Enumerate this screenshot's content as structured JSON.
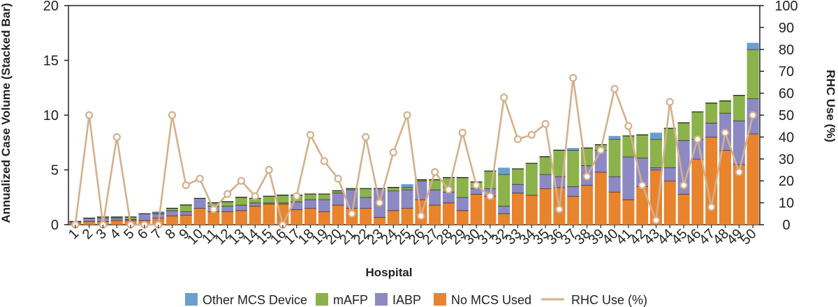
{
  "chart_data": {
    "type": "bar",
    "stacked": true,
    "categories": [
      "1",
      "2",
      "3",
      "4",
      "5",
      "6",
      "7",
      "8",
      "9",
      "10",
      "11",
      "12",
      "13",
      "14",
      "15",
      "16",
      "17",
      "18",
      "19",
      "20",
      "21",
      "22",
      "23",
      "24",
      "25",
      "26",
      "27",
      "28",
      "29",
      "30",
      "31",
      "32",
      "33",
      "34",
      "35",
      "36",
      "37",
      "38",
      "39",
      "40",
      "41",
      "42",
      "43",
      "44",
      "45",
      "46",
      "47",
      "48",
      "49",
      "50"
    ],
    "xlabel": "Hospital",
    "ylabel": "Annualized Case Volume (Stacked Bar)",
    "ylim": [
      0,
      20
    ],
    "yticks": [
      "0",
      "5",
      "10",
      "15",
      "20"
    ],
    "y2label": "RHC Use (%)",
    "y2lim": [
      0,
      100
    ],
    "y2ticks": [
      "0",
      "10",
      "20",
      "30",
      "40",
      "50",
      "60",
      "70",
      "80",
      "90",
      "100"
    ],
    "series": [
      {
        "name": "No MCS Used",
        "color": "#E8832E",
        "values": [
          0.2,
          0.3,
          0.3,
          0.4,
          0.4,
          0.4,
          0.6,
          0.8,
          0.9,
          1.5,
          1.2,
          1.2,
          1.3,
          1.7,
          1.9,
          1.9,
          1.4,
          1.5,
          1.2,
          1.8,
          1.5,
          1.5,
          0.7,
          1.3,
          1.5,
          2.3,
          1.8,
          2.0,
          1.3,
          2.8,
          2.6,
          1.0,
          2.9,
          2.7,
          3.3,
          3.4,
          2.6,
          3.6,
          4.8,
          3.0,
          2.3,
          3.5,
          5.0,
          4.0,
          2.8,
          6.0,
          8.0,
          6.8,
          5.5,
          8.3
        ]
      },
      {
        "name": "IABP",
        "color": "#8D89C2",
        "values": [
          0.1,
          0.3,
          0.3,
          0.2,
          0.1,
          0.6,
          0.4,
          0.5,
          0.3,
          0.9,
          0.5,
          0.5,
          0.5,
          0.3,
          0.1,
          0.1,
          0.7,
          0.8,
          1.1,
          1.1,
          1.7,
          1.0,
          2.6,
          1.8,
          1.7,
          1.7,
          1.4,
          1.0,
          1.2,
          0.5,
          0.7,
          0.7,
          0.8,
          0.0,
          1.3,
          1.0,
          0.9,
          1.8,
          2.0,
          1.4,
          3.9,
          2.6,
          0.2,
          1.2,
          4.9,
          1.8,
          1.3,
          3.4,
          4.0,
          3.2
        ]
      },
      {
        "name": "mAFP",
        "color": "#8CB24B",
        "values": [
          0.0,
          0.0,
          0.1,
          0.1,
          0.2,
          0.0,
          0.1,
          0.2,
          0.6,
          0.0,
          0.3,
          0.4,
          0.7,
          0.4,
          0.6,
          0.7,
          0.6,
          0.5,
          0.5,
          0.2,
          0.1,
          0.8,
          0.0,
          0.3,
          0.2,
          0.1,
          0.9,
          1.3,
          1.8,
          0.6,
          1.6,
          2.9,
          1.4,
          2.9,
          1.6,
          2.4,
          3.3,
          1.6,
          0.5,
          3.4,
          1.9,
          2.1,
          2.6,
          3.6,
          1.6,
          2.5,
          1.8,
          1.1,
          2.3,
          4.5
        ]
      },
      {
        "name": "Other MCS Device",
        "color": "#6B9FCD",
        "values": [
          0.0,
          0.0,
          0.0,
          0.0,
          0.0,
          0.0,
          0.1,
          0.0,
          0.0,
          0.0,
          0.0,
          0.0,
          0.0,
          0.0,
          0.0,
          0.0,
          0.0,
          0.0,
          0.0,
          0.0,
          0.0,
          0.0,
          0.0,
          0.0,
          0.3,
          0.0,
          0.0,
          0.0,
          0.0,
          0.0,
          0.0,
          0.6,
          0.0,
          0.0,
          0.0,
          0.0,
          0.2,
          0.0,
          0.0,
          0.3,
          0.0,
          0.0,
          0.6,
          0.0,
          0.0,
          0.0,
          0.0,
          0.0,
          0.0,
          0.6
        ]
      }
    ],
    "line": {
      "name": "RHC Use (%)",
      "color": "#D4B08C",
      "axis": "right",
      "values": [
        0,
        50,
        0,
        40,
        0,
        0,
        0,
        50,
        18,
        21,
        7,
        14,
        20,
        13,
        25,
        0,
        13,
        41,
        29,
        21,
        5,
        40,
        10,
        33,
        50,
        4,
        24,
        16,
        42,
        18,
        13,
        58,
        39,
        41,
        46,
        7,
        67,
        22,
        34,
        62,
        45,
        18,
        2,
        56,
        18,
        39,
        8,
        42,
        24,
        50
      ]
    },
    "legend": {
      "position": "bottom",
      "items": [
        {
          "label": "Other MCS Device",
          "color": "#6B9FCD",
          "kind": "box"
        },
        {
          "label": "mAFP",
          "color": "#8CB24B",
          "kind": "box"
        },
        {
          "label": "IABP",
          "color": "#8D89C2",
          "kind": "box"
        },
        {
          "label": "No MCS Used",
          "color": "#E8832E",
          "kind": "box"
        },
        {
          "label": "RHC Use (%)",
          "color": "#D4B08C",
          "kind": "line"
        }
      ]
    }
  }
}
